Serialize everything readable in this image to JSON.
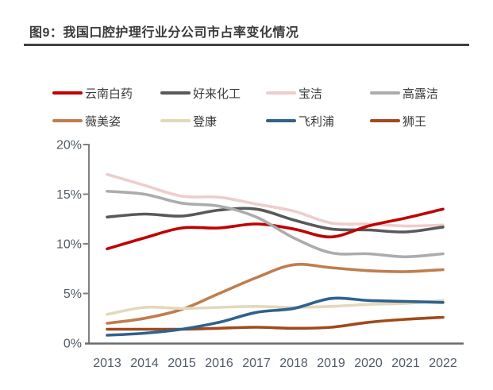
{
  "header": {
    "title": "图9：我国口腔护理行业分公司市占率变化情况"
  },
  "chart_data": {
    "type": "line",
    "title": "我国口腔护理行业分公司市占率变化情况",
    "x": [
      "2013",
      "2014",
      "2015",
      "2016",
      "2017",
      "2018",
      "2019",
      "2020",
      "2021",
      "2022"
    ],
    "series": [
      {
        "name": "云南白药",
        "color": "#c00000",
        "values": [
          9.5,
          10.6,
          11.6,
          11.6,
          12.0,
          11.5,
          10.7,
          11.8,
          12.6,
          13.5
        ]
      },
      {
        "name": "好来化工",
        "color": "#595959",
        "values": [
          12.7,
          13.0,
          12.8,
          13.4,
          13.5,
          12.4,
          11.5,
          11.4,
          11.2,
          11.7
        ]
      },
      {
        "name": "宝洁",
        "color": "#eecdcd",
        "values": [
          17.0,
          15.9,
          14.8,
          14.7,
          14.0,
          13.3,
          12.1,
          12.0,
          11.8,
          11.9
        ]
      },
      {
        "name": "高露洁",
        "color": "#acacac",
        "values": [
          15.3,
          15.0,
          14.1,
          13.8,
          12.7,
          10.6,
          9.1,
          9.0,
          8.7,
          9.0
        ]
      },
      {
        "name": "薇美姿",
        "color": "#bf7d4e",
        "values": [
          2.0,
          2.5,
          3.4,
          5.0,
          6.6,
          7.9,
          7.6,
          7.3,
          7.2,
          7.4
        ]
      },
      {
        "name": "登康",
        "color": "#e3d8ba",
        "values": [
          2.9,
          3.6,
          3.5,
          3.6,
          3.7,
          3.6,
          3.7,
          3.9,
          4.0,
          4.3
        ]
      },
      {
        "name": "飞利浦",
        "color": "#2e628f",
        "values": [
          0.8,
          1.0,
          1.4,
          2.1,
          3.1,
          3.5,
          4.5,
          4.3,
          4.2,
          4.1
        ]
      },
      {
        "name": "狮王",
        "color": "#9f4a1d",
        "values": [
          1.4,
          1.4,
          1.4,
          1.5,
          1.6,
          1.5,
          1.6,
          2.1,
          2.4,
          2.6
        ]
      }
    ],
    "xlabel": "",
    "ylabel": "",
    "ylim": [
      0,
      20
    ],
    "y_ticks": [
      "0%",
      "5%",
      "10%",
      "15%",
      "20%"
    ],
    "grid": false,
    "legend_position": "top",
    "line_style": "smooth"
  }
}
